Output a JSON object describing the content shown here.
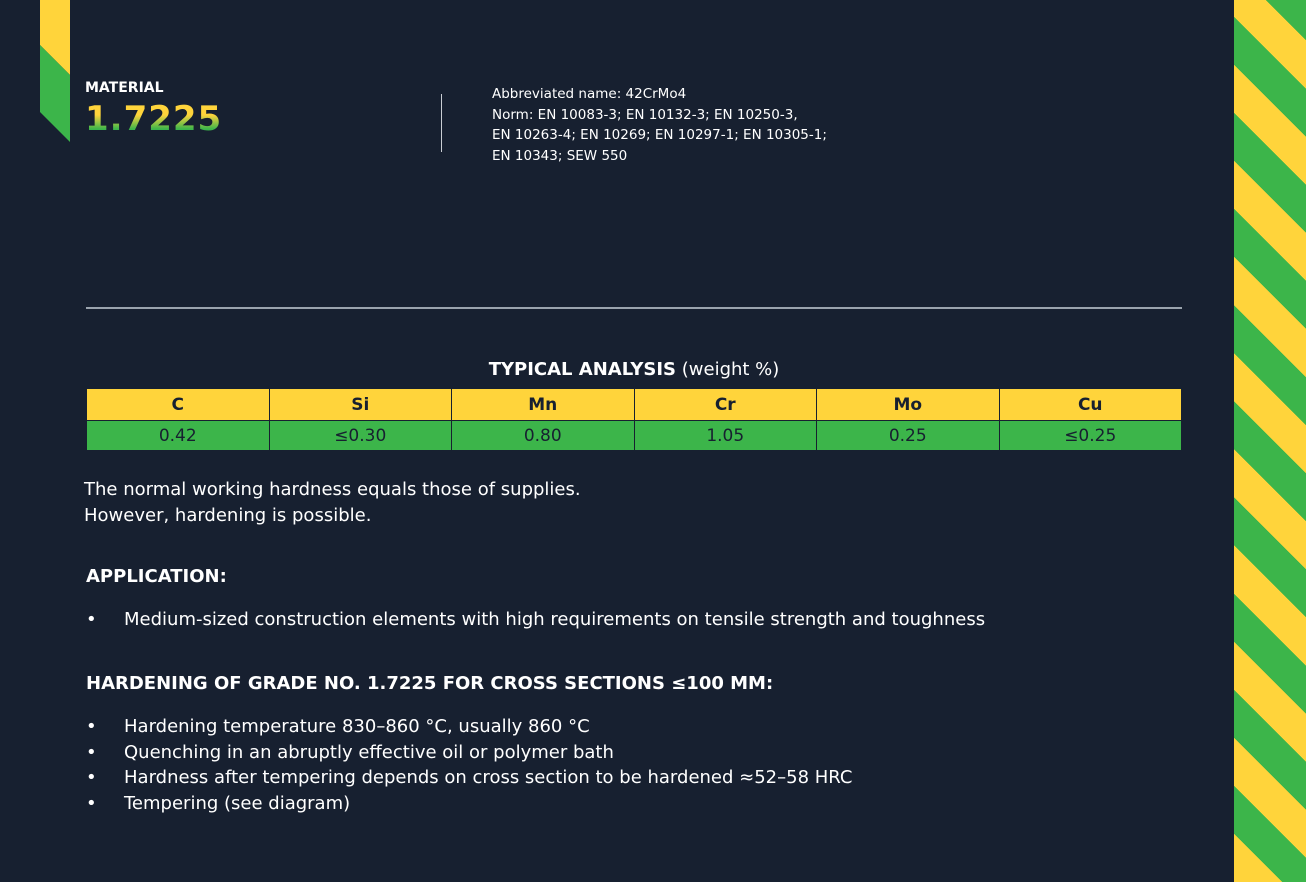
{
  "material": {
    "label": "MATERIAL",
    "number": "1.7225"
  },
  "meta": {
    "lines": [
      "Abbreviated name: 42CrMo4",
      "Norm: EN 10083-3; EN 10132-3; EN 10250-3,",
      "EN 10263-4; EN 10269; EN 10297-1; EN 10305-1;",
      "EN 10343; SEW 550"
    ]
  },
  "analysis": {
    "title_bold": "TYPICAL ANALYSIS",
    "title_rest": " (weight %)",
    "headers": [
      "C",
      "Si",
      "Mn",
      "Cr",
      "Mo",
      "Cu"
    ],
    "values": [
      "0.42",
      "≤0.30",
      "0.80",
      "1.05",
      "0.25",
      "≤0.25"
    ]
  },
  "note": {
    "line1": "The normal working hardness equals those of supplies.",
    "line2": "However, hardening is possible."
  },
  "application": {
    "title": "APPLICATION:",
    "items": [
      "Medium-sized construction elements with high requirements on tensile strength and toughness"
    ]
  },
  "hardening": {
    "title": "HARDENING OF GRADE NO. 1.7225 FOR CROSS SECTIONS ≤100 MM:",
    "items": [
      "Hardening temperature 830–860 °C, usually 860 °C",
      "Quenching in an abruptly effective oil or polymer bath",
      "Hardness after tempering depends on cross section to be hardened ≈52–58 HRC",
      "Tempering (see diagram)"
    ]
  },
  "bullet_symbol": "•",
  "colors": {
    "background": "#172030",
    "accent_yellow": "#ffd43b",
    "accent_green": "#3cb54a"
  }
}
